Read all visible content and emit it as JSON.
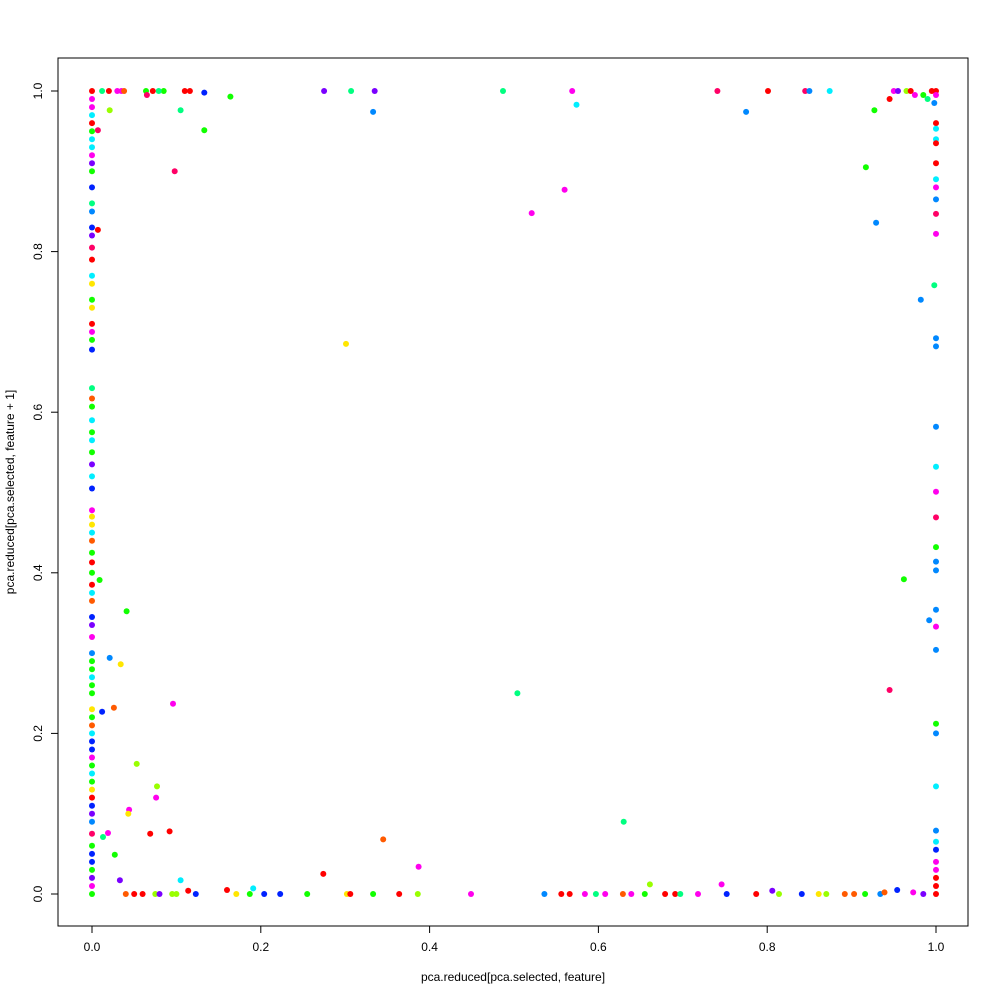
{
  "chart_data": {
    "type": "scatter",
    "title": "",
    "xlabel": "pca.reduced[pca.selected, feature]",
    "ylabel": "pca.reduced[pca.selected, feature + 1]",
    "xlim": [
      -0.04,
      1.04
    ],
    "ylim": [
      -0.04,
      1.04
    ],
    "x_ticks": [
      "0.0",
      "0.2",
      "0.4",
      "0.6",
      "0.8",
      "1.0"
    ],
    "y_ticks": [
      "0.0",
      "0.2",
      "0.4",
      "0.6",
      "0.8",
      "1.0"
    ],
    "grid": false,
    "legend": "none",
    "palette": {
      "red": "#FF0000",
      "rose": "#FF0066",
      "orange": "#FF5A00",
      "yellow": "#FFE600",
      "lime": "#99FF00",
      "green": "#11FF00",
      "spring": "#00FF80",
      "cyan": "#00EEFF",
      "azure": "#0088FF",
      "blue": "#0022FF",
      "purple": "#7A00FF",
      "magenta": "#FF00EE"
    },
    "point_fields": [
      "x",
      "y",
      "color"
    ],
    "points": [
      [
        0.098,
        0.9,
        "rose"
      ],
      [
        0.133,
        0.951,
        "green"
      ],
      [
        0.105,
        0.976,
        "spring"
      ],
      [
        0.164,
        0.993,
        "green"
      ],
      [
        0.007,
        0.827,
        "red"
      ],
      [
        0.007,
        0.951,
        "rose"
      ],
      [
        0.021,
        0.976,
        "lime"
      ],
      [
        0.333,
        0.974,
        "azure"
      ],
      [
        0.301,
        0.685,
        "yellow"
      ],
      [
        0.521,
        0.848,
        "magenta"
      ],
      [
        0.56,
        0.877,
        "magenta"
      ],
      [
        0.574,
        0.983,
        "cyan"
      ],
      [
        0.775,
        0.974,
        "azure"
      ],
      [
        0.929,
        0.836,
        "azure"
      ],
      [
        0.917,
        0.905,
        "green"
      ],
      [
        0.927,
        0.976,
        "green"
      ],
      [
        0.982,
        0.74,
        "azure"
      ],
      [
        0.962,
        0.392,
        "green"
      ],
      [
        0.945,
        0.254,
        "rose"
      ],
      [
        0.992,
        0.341,
        "azure"
      ],
      [
        0.009,
        0.391,
        "green"
      ],
      [
        0.041,
        0.352,
        "green"
      ],
      [
        0.034,
        0.286,
        "yellow"
      ],
      [
        0.021,
        0.294,
        "azure"
      ],
      [
        0.012,
        0.227,
        "blue"
      ],
      [
        0.026,
        0.232,
        "orange"
      ],
      [
        0.096,
        0.237,
        "magenta"
      ],
      [
        0.053,
        0.162,
        "lime"
      ],
      [
        0.077,
        0.134,
        "lime"
      ],
      [
        0.076,
        0.12,
        "magenta"
      ],
      [
        0.044,
        0.105,
        "magenta"
      ],
      [
        0.043,
        0.1,
        "yellow"
      ],
      [
        0.069,
        0.075,
        "red"
      ],
      [
        0.092,
        0.078,
        "red"
      ],
      [
        0.019,
        0.076,
        "magenta"
      ],
      [
        0.013,
        0.071,
        "spring"
      ],
      [
        0.027,
        0.049,
        "green"
      ],
      [
        0.345,
        0.068,
        "orange"
      ],
      [
        0.387,
        0.034,
        "magenta"
      ],
      [
        0.504,
        0.25,
        "spring"
      ],
      [
        0.63,
        0.09,
        "spring"
      ],
      [
        0.274,
        0.025,
        "red"
      ],
      [
        0.661,
        0.012,
        "lime"
      ],
      [
        0.746,
        0.012,
        "magenta"
      ],
      [
        0.105,
        0.017,
        "cyan"
      ],
      [
        0.033,
        0.017,
        "purple"
      ],
      [
        0.16,
        0.005,
        "red"
      ],
      [
        0.191,
        0.007,
        "cyan"
      ],
      [
        0.114,
        0.004,
        "red"
      ],
      [
        0.275,
        1.0,
        "purple"
      ],
      [
        0.307,
        1.0,
        "spring"
      ],
      [
        0.335,
        1.0,
        "purple"
      ],
      [
        0.487,
        1.0,
        "spring"
      ],
      [
        0.569,
        1.0,
        "magenta"
      ],
      [
        0.741,
        1.0,
        "rose"
      ],
      [
        0.801,
        1.0,
        "red"
      ],
      [
        0.845,
        1.0,
        "rose"
      ],
      [
        0.85,
        1.0,
        "azure"
      ],
      [
        0.874,
        1.0,
        "cyan"
      ],
      [
        0.133,
        0.998,
        "blue"
      ],
      [
        0.116,
        1.0,
        "red"
      ],
      [
        0.11,
        1.0,
        "red"
      ],
      [
        0.085,
        1.0,
        "green"
      ],
      [
        0.079,
        1.0,
        "spring"
      ],
      [
        0.072,
        1.0,
        "red"
      ],
      [
        0.064,
        1.0,
        "green"
      ],
      [
        0.065,
        0.995,
        "rose"
      ],
      [
        0.035,
        1.0,
        "magenta"
      ],
      [
        0.03,
        1.0,
        "magenta"
      ],
      [
        0.02,
        1.0,
        "red"
      ],
      [
        0.012,
        1.0,
        "spring"
      ],
      [
        0.038,
        1.0,
        "orange"
      ],
      [
        0.95,
        1.0,
        "magenta"
      ],
      [
        0.955,
        1.0,
        "purple"
      ],
      [
        0.965,
        1.0,
        "lime"
      ],
      [
        0.97,
        1.0,
        "red"
      ],
      [
        0.975,
        0.995,
        "magenta"
      ],
      [
        0.945,
        0.99,
        "red"
      ],
      [
        0.985,
        0.995,
        "green"
      ],
      [
        0.99,
        0.99,
        "spring"
      ],
      [
        0.995,
        1.0,
        "red"
      ],
      [
        1.0,
        1.0,
        "red"
      ],
      [
        1.0,
        0.995,
        "magenta"
      ],
      [
        0.998,
        0.985,
        "azure"
      ],
      [
        0.123,
        0.0,
        "blue"
      ],
      [
        0.171,
        0.0,
        "yellow"
      ],
      [
        0.187,
        0.0,
        "green"
      ],
      [
        0.204,
        0.0,
        "blue"
      ],
      [
        0.223,
        0.0,
        "blue"
      ],
      [
        0.255,
        0.0,
        "green"
      ],
      [
        0.302,
        0.0,
        "yellow"
      ],
      [
        0.306,
        0.0,
        "red"
      ],
      [
        0.333,
        0.0,
        "green"
      ],
      [
        0.364,
        0.0,
        "red"
      ],
      [
        0.386,
        0.0,
        "lime"
      ],
      [
        0.449,
        0.0,
        "magenta"
      ],
      [
        0.536,
        0.0,
        "azure"
      ],
      [
        0.556,
        0.0,
        "red"
      ],
      [
        0.566,
        0.0,
        "red"
      ],
      [
        0.584,
        0.0,
        "magenta"
      ],
      [
        0.597,
        0.0,
        "spring"
      ],
      [
        0.608,
        0.0,
        "magenta"
      ],
      [
        0.629,
        0.0,
        "orange"
      ],
      [
        0.639,
        0.0,
        "magenta"
      ],
      [
        0.655,
        0.0,
        "green"
      ],
      [
        0.679,
        0.0,
        "red"
      ],
      [
        0.691,
        0.0,
        "red"
      ],
      [
        0.697,
        0.0,
        "spring"
      ],
      [
        0.718,
        0.0,
        "magenta"
      ],
      [
        0.752,
        0.0,
        "blue"
      ],
      [
        0.787,
        0.0,
        "red"
      ],
      [
        0.806,
        0.004,
        "purple"
      ],
      [
        0.814,
        0.0,
        "lime"
      ],
      [
        0.841,
        0.0,
        "blue"
      ],
      [
        0.861,
        0.0,
        "yellow"
      ],
      [
        0.87,
        0.0,
        "lime"
      ],
      [
        0.892,
        0.0,
        "orange"
      ],
      [
        0.903,
        0.0,
        "orange"
      ],
      [
        0.916,
        0.0,
        "green"
      ],
      [
        0.934,
        0.0,
        "azure"
      ],
      [
        0.939,
        0.002,
        "orange"
      ],
      [
        0.954,
        0.005,
        "blue"
      ],
      [
        0.973,
        0.002,
        "magenta"
      ],
      [
        0.985,
        0.0,
        "purple"
      ],
      [
        0.04,
        0.0,
        "orange"
      ],
      [
        0.05,
        0.0,
        "red"
      ],
      [
        0.06,
        0.0,
        "red"
      ],
      [
        0.075,
        0.0,
        "lime"
      ],
      [
        0.08,
        0.0,
        "purple"
      ],
      [
        0.095,
        0.0,
        "lime"
      ],
      [
        0.1,
        0.0,
        "lime"
      ],
      [
        1.0,
        0.96,
        "red"
      ],
      [
        1.0,
        0.953,
        "cyan"
      ],
      [
        1.0,
        0.94,
        "cyan"
      ],
      [
        1.0,
        0.935,
        "red"
      ],
      [
        1.0,
        0.91,
        "red"
      ],
      [
        1.0,
        0.89,
        "cyan"
      ],
      [
        1.0,
        0.88,
        "magenta"
      ],
      [
        1.0,
        0.865,
        "azure"
      ],
      [
        1.0,
        0.847,
        "rose"
      ],
      [
        1.0,
        0.822,
        "magenta"
      ],
      [
        0.998,
        0.758,
        "spring"
      ],
      [
        1.0,
        0.692,
        "azure"
      ],
      [
        1.0,
        0.682,
        "azure"
      ],
      [
        1.0,
        0.582,
        "azure"
      ],
      [
        1.0,
        0.532,
        "cyan"
      ],
      [
        1.0,
        0.501,
        "magenta"
      ],
      [
        1.0,
        0.469,
        "rose"
      ],
      [
        1.0,
        0.432,
        "green"
      ],
      [
        1.0,
        0.414,
        "azure"
      ],
      [
        1.0,
        0.403,
        "azure"
      ],
      [
        1.0,
        0.354,
        "azure"
      ],
      [
        1.0,
        0.333,
        "magenta"
      ],
      [
        1.0,
        0.304,
        "azure"
      ],
      [
        1.0,
        0.212,
        "green"
      ],
      [
        1.0,
        0.2,
        "azure"
      ],
      [
        1.0,
        0.134,
        "cyan"
      ],
      [
        1.0,
        0.079,
        "azure"
      ],
      [
        1.0,
        0.065,
        "cyan"
      ],
      [
        1.0,
        0.055,
        "blue"
      ],
      [
        1.0,
        0.04,
        "magenta"
      ],
      [
        1.0,
        0.03,
        "magenta"
      ],
      [
        1.0,
        0.02,
        "red"
      ],
      [
        1.0,
        0.01,
        "red"
      ],
      [
        1.0,
        0.0,
        "red"
      ],
      [
        0.0,
        1.0,
        "red"
      ],
      [
        0.0,
        0.99,
        "magenta"
      ],
      [
        0.0,
        0.98,
        "magenta"
      ],
      [
        0.0,
        0.97,
        "cyan"
      ],
      [
        0.0,
        0.96,
        "red"
      ],
      [
        0.0,
        0.95,
        "green"
      ],
      [
        0.0,
        0.94,
        "cyan"
      ],
      [
        0.0,
        0.93,
        "cyan"
      ],
      [
        0.0,
        0.92,
        "magenta"
      ],
      [
        0.0,
        0.91,
        "purple"
      ],
      [
        0.0,
        0.9,
        "green"
      ],
      [
        0.0,
        0.88,
        "blue"
      ],
      [
        0.0,
        0.86,
        "spring"
      ],
      [
        0.0,
        0.85,
        "azure"
      ],
      [
        0.0,
        0.83,
        "blue"
      ],
      [
        0.0,
        0.82,
        "purple"
      ],
      [
        0.0,
        0.805,
        "rose"
      ],
      [
        0.0,
        0.79,
        "red"
      ],
      [
        0.0,
        0.77,
        "cyan"
      ],
      [
        0.0,
        0.76,
        "yellow"
      ],
      [
        0.0,
        0.74,
        "green"
      ],
      [
        0.0,
        0.73,
        "yellow"
      ],
      [
        0.0,
        0.71,
        "red"
      ],
      [
        0.0,
        0.7,
        "magenta"
      ],
      [
        0.0,
        0.69,
        "green"
      ],
      [
        0.0,
        0.678,
        "blue"
      ],
      [
        0.0,
        0.63,
        "spring"
      ],
      [
        0.0,
        0.617,
        "orange"
      ],
      [
        0.0,
        0.607,
        "green"
      ],
      [
        0.0,
        0.59,
        "cyan"
      ],
      [
        0.0,
        0.575,
        "green"
      ],
      [
        0.0,
        0.565,
        "cyan"
      ],
      [
        0.0,
        0.55,
        "green"
      ],
      [
        0.0,
        0.535,
        "purple"
      ],
      [
        0.0,
        0.52,
        "cyan"
      ],
      [
        0.0,
        0.505,
        "blue"
      ],
      [
        0.0,
        0.478,
        "magenta"
      ],
      [
        0.0,
        0.47,
        "yellow"
      ],
      [
        0.0,
        0.46,
        "yellow"
      ],
      [
        0.0,
        0.45,
        "cyan"
      ],
      [
        0.0,
        0.44,
        "orange"
      ],
      [
        0.0,
        0.425,
        "green"
      ],
      [
        0.0,
        0.413,
        "red"
      ],
      [
        0.0,
        0.4,
        "green"
      ],
      [
        0.0,
        0.385,
        "red"
      ],
      [
        0.0,
        0.375,
        "cyan"
      ],
      [
        0.0,
        0.365,
        "orange"
      ],
      [
        0.0,
        0.345,
        "blue"
      ],
      [
        0.0,
        0.335,
        "purple"
      ],
      [
        0.0,
        0.32,
        "magenta"
      ],
      [
        0.0,
        0.3,
        "azure"
      ],
      [
        0.0,
        0.29,
        "green"
      ],
      [
        0.0,
        0.28,
        "green"
      ],
      [
        0.0,
        0.27,
        "cyan"
      ],
      [
        0.0,
        0.26,
        "green"
      ],
      [
        0.0,
        0.25,
        "green"
      ],
      [
        0.0,
        0.23,
        "yellow"
      ],
      [
        0.0,
        0.22,
        "green"
      ],
      [
        0.0,
        0.21,
        "orange"
      ],
      [
        0.0,
        0.2,
        "cyan"
      ],
      [
        0.0,
        0.19,
        "blue"
      ],
      [
        0.0,
        0.18,
        "blue"
      ],
      [
        0.0,
        0.17,
        "magenta"
      ],
      [
        0.0,
        0.16,
        "green"
      ],
      [
        0.0,
        0.15,
        "cyan"
      ],
      [
        0.0,
        0.14,
        "green"
      ],
      [
        0.0,
        0.13,
        "yellow"
      ],
      [
        0.0,
        0.12,
        "red"
      ],
      [
        0.0,
        0.11,
        "blue"
      ],
      [
        0.0,
        0.1,
        "purple"
      ],
      [
        0.0,
        0.09,
        "azure"
      ],
      [
        0.0,
        0.075,
        "rose"
      ],
      [
        0.0,
        0.06,
        "green"
      ],
      [
        0.0,
        0.05,
        "blue"
      ],
      [
        0.0,
        0.04,
        "blue"
      ],
      [
        0.0,
        0.03,
        "green"
      ],
      [
        0.0,
        0.02,
        "purple"
      ],
      [
        0.0,
        0.01,
        "magenta"
      ],
      [
        0.0,
        0.0,
        "green"
      ]
    ]
  }
}
